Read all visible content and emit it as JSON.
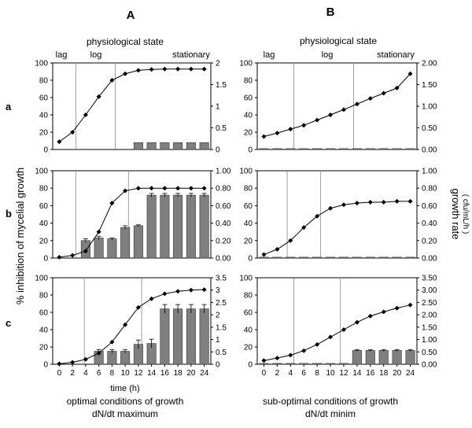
{
  "figure": {
    "column_labels": [
      "A",
      "B"
    ],
    "row_labels": [
      "a",
      "b",
      "c"
    ],
    "physiological_state_title": "physiological state",
    "phase_labels": {
      "lag": "lag",
      "log": "log",
      "stationary": "stationary"
    },
    "y_left_label": "% inhibition of mycelial growth",
    "y_right_label": "growth rate",
    "y_right_unit": "( cfu/mL/h )",
    "x_label": "time (h)",
    "caption_A": [
      "optimal conditions of growth",
      "dN/dt maximum"
    ],
    "caption_B": [
      "sub-optimal conditions of growth",
      "dN/dt minim"
    ]
  },
  "chart_data": [
    {
      "id": "A-a",
      "type": "bar+line",
      "x": [
        0,
        2,
        4,
        6,
        8,
        10,
        12,
        14,
        16,
        18,
        20,
        24
      ],
      "bars": [
        0,
        0,
        0,
        0,
        0,
        0,
        8,
        8,
        8,
        8,
        8,
        8
      ],
      "bar_errors": [
        0,
        0,
        0,
        0,
        0,
        0,
        0,
        0,
        0,
        0,
        0,
        0
      ],
      "line": [
        0.18,
        0.4,
        0.8,
        1.22,
        1.6,
        1.75,
        1.83,
        1.85,
        1.86,
        1.86,
        1.86,
        1.86
      ],
      "ylim_left": [
        0,
        100
      ],
      "left_ticks": [
        "0",
        "20",
        "40",
        "60",
        "80",
        "100"
      ],
      "ylim_right": [
        0,
        2
      ],
      "right_ticks": [
        "0",
        "0.5",
        "1",
        "1.5",
        "2"
      ],
      "phase_boundaries": [
        2.5,
        8.5
      ]
    },
    {
      "id": "B-a",
      "type": "bar+line",
      "x": [
        0,
        2,
        4,
        6,
        8,
        10,
        12,
        14,
        16,
        18,
        20,
        24
      ],
      "bars": [
        1,
        1,
        1,
        1,
        1,
        1,
        1,
        1,
        1,
        1,
        1,
        1
      ],
      "bar_errors": [
        0,
        0,
        0,
        0,
        0,
        0,
        0,
        0,
        0,
        0,
        0,
        0
      ],
      "line": [
        0.3,
        0.38,
        0.47,
        0.56,
        0.68,
        0.8,
        0.92,
        1.05,
        1.18,
        1.3,
        1.42,
        1.75
      ],
      "ylim_left": [
        0,
        100
      ],
      "left_ticks": [
        "0",
        "20",
        "40",
        "60",
        "80",
        "100"
      ],
      "ylim_right": [
        0,
        2
      ],
      "right_ticks": [
        "0.00",
        "0.50",
        "1.00",
        "1.50",
        "2.00"
      ],
      "phase_boundaries": [
        4.5,
        13.5
      ]
    },
    {
      "id": "A-b",
      "type": "bar+line",
      "x": [
        0,
        2,
        4,
        6,
        8,
        10,
        12,
        14,
        16,
        18,
        20,
        24
      ],
      "bars": [
        0,
        0,
        20,
        23,
        22,
        35,
        37,
        72,
        72,
        72,
        72,
        72
      ],
      "bar_errors": [
        0,
        0,
        2,
        2,
        1,
        2,
        1,
        2,
        2,
        2,
        2,
        2
      ],
      "line": [
        0.01,
        0.03,
        0.08,
        0.3,
        0.63,
        0.77,
        0.8,
        0.8,
        0.8,
        0.8,
        0.8,
        0.8
      ],
      "ylim_left": [
        0,
        100
      ],
      "left_ticks": [
        "0",
        "20",
        "40",
        "60",
        "80",
        "100"
      ],
      "ylim_right": [
        0,
        1
      ],
      "right_ticks": [
        "0.00",
        "0.20",
        "0.40",
        "0.60",
        "0.80",
        "1.00"
      ],
      "phase_boundaries": [
        2.5,
        10.5
      ]
    },
    {
      "id": "B-b",
      "type": "bar+line",
      "x": [
        0,
        2,
        4,
        6,
        8,
        10,
        12,
        14,
        16,
        18,
        20,
        24
      ],
      "bars": [
        1,
        1,
        1,
        1,
        1,
        1,
        1,
        1,
        1,
        1,
        1,
        1
      ],
      "bar_errors": [
        0,
        0,
        0,
        0,
        0,
        0,
        0,
        0,
        0,
        0,
        0,
        0
      ],
      "line": [
        0.04,
        0.1,
        0.2,
        0.35,
        0.48,
        0.57,
        0.61,
        0.63,
        0.64,
        0.64,
        0.65,
        0.65
      ],
      "ylim_left": [
        0,
        100
      ],
      "left_ticks": [
        "0",
        "20",
        "40",
        "60",
        "80",
        "100"
      ],
      "ylim_right": [
        0,
        1
      ],
      "right_ticks": [
        "0.00",
        "0.20",
        "0.40",
        "0.60",
        "0.80",
        "1.00"
      ],
      "phase_boundaries": [
        3.5,
        8.5
      ]
    },
    {
      "id": "A-c",
      "type": "bar+line",
      "x": [
        0,
        2,
        4,
        6,
        8,
        10,
        12,
        14,
        16,
        18,
        20,
        24
      ],
      "bars": [
        0,
        0,
        0,
        15,
        15,
        15,
        23,
        24,
        64,
        64,
        64,
        64
      ],
      "bar_errors": [
        0,
        0,
        0,
        2,
        2,
        2,
        5,
        5,
        5,
        5,
        5,
        5
      ],
      "line": [
        0.02,
        0.08,
        0.2,
        0.45,
        0.9,
        1.6,
        2.3,
        2.65,
        2.85,
        2.95,
        3.0,
        3.02
      ],
      "ylim_left": [
        0,
        100
      ],
      "left_ticks": [
        "0",
        "20",
        "40",
        "60",
        "80",
        "100"
      ],
      "ylim_right": [
        0,
        3.5
      ],
      "right_ticks": [
        "0",
        "0.5",
        "1",
        "1.5",
        "2",
        "2.5",
        "3",
        "3.5"
      ],
      "phase_boundaries": [
        3.8,
        12.5
      ]
    },
    {
      "id": "B-c",
      "type": "bar+line",
      "x": [
        0,
        2,
        4,
        6,
        8,
        10,
        12,
        14,
        16,
        18,
        20,
        24
      ],
      "bars": [
        1,
        1,
        1,
        1,
        1,
        1,
        1,
        16,
        16,
        16,
        16,
        16
      ],
      "bar_errors": [
        0,
        0,
        0,
        0,
        0,
        0,
        0,
        1,
        1,
        1,
        1,
        1
      ],
      "line": [
        0.15,
        0.25,
        0.37,
        0.55,
        0.8,
        1.1,
        1.4,
        1.7,
        1.95,
        2.12,
        2.27,
        2.4
      ],
      "ylim_left": [
        0,
        100
      ],
      "left_ticks": [
        "0",
        "20",
        "40",
        "60",
        "80",
        "100"
      ],
      "ylim_right": [
        0,
        3.5
      ],
      "right_ticks": [
        "0.00",
        "0.50",
        "1.00",
        "1.50",
        "2.00",
        "2.50",
        "3.00",
        "3.50"
      ],
      "phase_boundaries": [
        4.5,
        11.5
      ]
    }
  ]
}
